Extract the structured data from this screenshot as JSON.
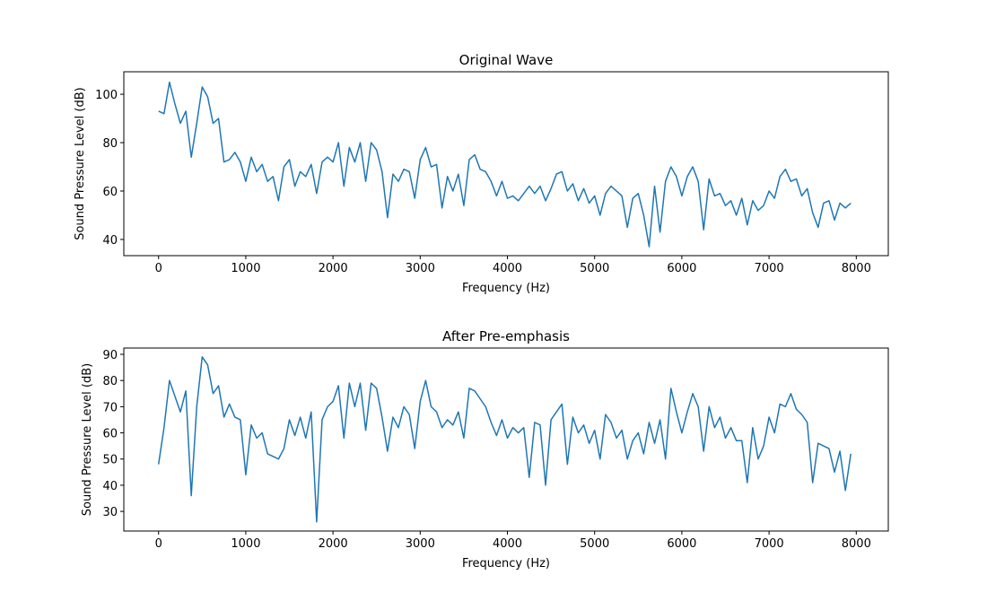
{
  "chart_data": [
    {
      "type": "line",
      "title": "Original Wave",
      "x_label": "Frequency (Hz)",
      "y_label": "Sound Pressure Level (dB)",
      "x": [
        0,
        62.5,
        125,
        187.5,
        250,
        312.5,
        375,
        437.5,
        500,
        562.5,
        625,
        687.5,
        750,
        812.5,
        875,
        937.5,
        1000,
        1062.5,
        1125,
        1187.5,
        1250,
        1312.5,
        1375,
        1437.5,
        1500,
        1562.5,
        1625,
        1687.5,
        1750,
        1812.5,
        1875,
        1937.5,
        2000,
        2062.5,
        2125,
        2187.5,
        2250,
        2312.5,
        2375,
        2437.5,
        2500,
        2562.5,
        2625,
        2687.5,
        2750,
        2812.5,
        2875,
        2937.5,
        3000,
        3062.5,
        3125,
        3187.5,
        3250,
        3312.5,
        3375,
        3437.5,
        3500,
        3562.5,
        3625,
        3687.5,
        3750,
        3812.5,
        3875,
        3937.5,
        4000,
        4062.5,
        4125,
        4187.5,
        4250,
        4312.5,
        4375,
        4437.5,
        4500,
        4562.5,
        4625,
        4687.5,
        4750,
        4812.5,
        4875,
        4937.5,
        5000,
        5062.5,
        5125,
        5187.5,
        5250,
        5312.5,
        5375,
        5437.5,
        5500,
        5562.5,
        5625,
        5687.5,
        5750,
        5812.5,
        5875,
        5937.5,
        6000,
        6062.5,
        6125,
        6187.5,
        6250,
        6312.5,
        6375,
        6437.5,
        6500,
        6562.5,
        6625,
        6687.5,
        6750,
        6812.5,
        6875,
        6937.5,
        7000,
        7062.5,
        7125,
        7187.5,
        7250,
        7312.5,
        7375,
        7437.5,
        7500,
        7562.5,
        7625,
        7687.5,
        7750,
        7812.5,
        7875,
        7937.5
      ],
      "series": [
        {
          "color": "#1f77b4",
          "values": [
            93,
            92,
            105,
            96,
            88,
            93,
            74,
            88,
            103,
            99,
            88,
            90,
            72,
            73,
            76,
            72,
            64,
            74,
            68,
            71,
            64,
            66,
            56,
            70,
            73,
            62,
            68,
            66,
            71,
            59,
            72,
            74,
            72,
            80,
            62,
            78,
            72,
            80,
            64,
            80,
            77,
            68,
            49,
            67,
            64,
            69,
            68,
            57,
            73,
            78,
            70,
            71,
            53,
            66,
            60,
            67,
            54,
            73,
            75,
            69,
            68,
            64,
            58,
            64,
            57,
            58,
            56,
            59,
            62,
            59,
            62,
            56,
            61,
            67,
            68,
            60,
            63,
            56,
            61,
            55,
            58,
            50,
            59,
            62,
            60,
            58,
            45,
            57,
            59,
            50,
            37,
            62,
            43,
            64,
            70,
            66,
            58,
            66,
            70,
            64,
            44,
            65,
            58,
            59,
            54,
            56,
            50,
            57,
            46,
            56,
            52,
            54,
            60,
            57,
            66,
            69,
            64,
            65,
            58,
            61,
            51,
            45,
            55,
            56,
            48,
            55,
            53,
            55
          ]
        }
      ],
      "xlim": [
        -398.4,
        8367.2
      ],
      "xticks": [
        0,
        1000,
        2000,
        3000,
        4000,
        5000,
        6000,
        7000,
        8000
      ],
      "ylim": [
        33.3,
        109.3
      ],
      "yticks": [
        40,
        60,
        80,
        100
      ]
    },
    {
      "type": "line",
      "title": "After Pre-emphasis",
      "x_label": "Frequency (Hz)",
      "y_label": "Sound Pressure Level (dB)",
      "x": [
        0,
        62.5,
        125,
        187.5,
        250,
        312.5,
        375,
        437.5,
        500,
        562.5,
        625,
        687.5,
        750,
        812.5,
        875,
        937.5,
        1000,
        1062.5,
        1125,
        1187.5,
        1250,
        1312.5,
        1375,
        1437.5,
        1500,
        1562.5,
        1625,
        1687.5,
        1750,
        1812.5,
        1875,
        1937.5,
        2000,
        2062.5,
        2125,
        2187.5,
        2250,
        2312.5,
        2375,
        2437.5,
        2500,
        2562.5,
        2625,
        2687.5,
        2750,
        2812.5,
        2875,
        2937.5,
        3000,
        3062.5,
        3125,
        3187.5,
        3250,
        3312.5,
        3375,
        3437.5,
        3500,
        3562.5,
        3625,
        3687.5,
        3750,
        3812.5,
        3875,
        3937.5,
        4000,
        4062.5,
        4125,
        4187.5,
        4250,
        4312.5,
        4375,
        4437.5,
        4500,
        4562.5,
        4625,
        4687.5,
        4750,
        4812.5,
        4875,
        4937.5,
        5000,
        5062.5,
        5125,
        5187.5,
        5250,
        5312.5,
        5375,
        5437.5,
        5500,
        5562.5,
        5625,
        5687.5,
        5750,
        5812.5,
        5875,
        5937.5,
        6000,
        6062.5,
        6125,
        6187.5,
        6250,
        6312.5,
        6375,
        6437.5,
        6500,
        6562.5,
        6625,
        6687.5,
        6750,
        6812.5,
        6875,
        6937.5,
        7000,
        7062.5,
        7125,
        7187.5,
        7250,
        7312.5,
        7375,
        7437.5,
        7500,
        7562.5,
        7625,
        7687.5,
        7750,
        7812.5,
        7875,
        7937.5
      ],
      "series": [
        {
          "color": "#1f77b4",
          "values": [
            48,
            62,
            80,
            74,
            68,
            76,
            36,
            70,
            89,
            86,
            75,
            78,
            66,
            71,
            66,
            65,
            44,
            63,
            58,
            60,
            52,
            51,
            50,
            54,
            65,
            59,
            66,
            58,
            68,
            26,
            65,
            70,
            72,
            78,
            58,
            79,
            70,
            79,
            61,
            79,
            77,
            66,
            53,
            66,
            62,
            70,
            67,
            54,
            72,
            80,
            70,
            68,
            62,
            65,
            63,
            68,
            58,
            77,
            76,
            73,
            70,
            64,
            59,
            65,
            58,
            62,
            60,
            62,
            43,
            64,
            63,
            40,
            65,
            68,
            71,
            48,
            66,
            60,
            63,
            56,
            61,
            50,
            67,
            64,
            58,
            61,
            50,
            57,
            60,
            52,
            64,
            56,
            65,
            50,
            77,
            68,
            60,
            68,
            75,
            70,
            53,
            70,
            62,
            66,
            58,
            62,
            57,
            57,
            41,
            62,
            50,
            55,
            66,
            60,
            71,
            70,
            75,
            69,
            67,
            64,
            41,
            56,
            55,
            54,
            45,
            53,
            38,
            52
          ]
        }
      ],
      "xlim": [
        -398.4,
        8367.2
      ],
      "xticks": [
        0,
        1000,
        2000,
        3000,
        4000,
        5000,
        6000,
        7000,
        8000
      ],
      "ylim": [
        22.5,
        92.4
      ],
      "yticks": [
        30,
        40,
        50,
        60,
        70,
        80,
        90
      ]
    }
  ]
}
